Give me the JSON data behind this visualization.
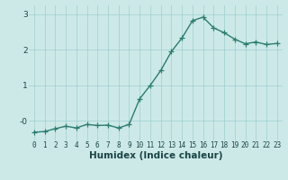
{
  "x": [
    0,
    1,
    2,
    3,
    4,
    5,
    6,
    7,
    8,
    9,
    10,
    11,
    12,
    13,
    14,
    15,
    16,
    17,
    18,
    19,
    20,
    21,
    22,
    23
  ],
  "y": [
    -0.32,
    -0.3,
    -0.22,
    -0.15,
    -0.2,
    -0.1,
    -0.13,
    -0.12,
    -0.2,
    -0.1,
    0.62,
    1.0,
    1.42,
    1.95,
    2.33,
    2.82,
    2.92,
    2.62,
    2.48,
    2.3,
    2.17,
    2.22,
    2.15,
    2.18
  ],
  "line_color": "#2a7d6e",
  "marker": "+",
  "marker_size": 4,
  "linewidth": 1.0,
  "xlabel": "Humidex (Indice chaleur)",
  "xlim": [
    -0.5,
    23.5
  ],
  "ylim": [
    -0.55,
    3.25
  ],
  "yticks": [
    0,
    1,
    2,
    3
  ],
  "ytick_labels": [
    "-0",
    "1",
    "2",
    "3"
  ],
  "xticks": [
    0,
    1,
    2,
    3,
    4,
    5,
    6,
    7,
    8,
    9,
    10,
    11,
    12,
    13,
    14,
    15,
    16,
    17,
    18,
    19,
    20,
    21,
    22,
    23
  ],
  "bg_color": "#cce9e8",
  "grid_color": "#9ecece",
  "grid_linewidth": 0.5,
  "tick_fontsize": 5.5,
  "xlabel_fontsize": 7.5,
  "label_color": "#1a4444"
}
